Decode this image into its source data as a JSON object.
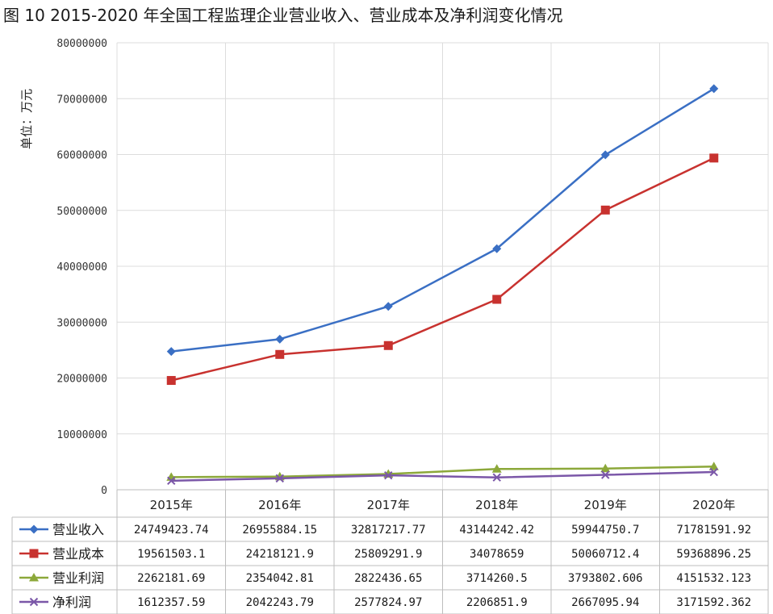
{
  "chart_data": {
    "type": "line",
    "title": "图 10   2015-2020 年全国工程监理企业营业收入、营业成本及净利润变化情况",
    "ylabel": "单位：万元",
    "xlabel": "",
    "ylim": [
      0,
      80000000
    ],
    "yticks": [
      0,
      10000000,
      20000000,
      30000000,
      40000000,
      50000000,
      60000000,
      70000000,
      80000000
    ],
    "ytick_labels": [
      "0",
      "10000000",
      "20000000",
      "30000000",
      "40000000",
      "50000000",
      "60000000",
      "70000000",
      "80000000"
    ],
    "categories": [
      "2015年",
      "2016年",
      "2017年",
      "2018年",
      "2019年",
      "2020年"
    ],
    "grid": true,
    "legend": "data-table-bottom",
    "series": [
      {
        "name": "营业收入",
        "color": "#3a6fc4",
        "marker": "diamond",
        "values": [
          24749423.74,
          26955884.15,
          32817217.77,
          43144242.42,
          59944750.7,
          71781591.92
        ],
        "labels": [
          "24749423.74",
          "26955884.15",
          "32817217.77",
          "43144242.42",
          "59944750.7",
          "71781591.92"
        ]
      },
      {
        "name": "营业成本",
        "color": "#c8322f",
        "marker": "square",
        "values": [
          19561503.1,
          24218121.9,
          25809291.9,
          34078659,
          50060712.4,
          59368896.25
        ],
        "labels": [
          "19561503.1",
          "24218121.9",
          "25809291.9",
          "34078659",
          "50060712.4",
          "59368896.25"
        ]
      },
      {
        "name": "营业利润",
        "color": "#8ca83a",
        "marker": "triangle",
        "values": [
          2262181.69,
          2354042.81,
          2822436.65,
          3714260.5,
          3793802.606,
          4151532.123
        ],
        "labels": [
          "2262181.69",
          "2354042.81",
          "2822436.65",
          "3714260.5",
          "3793802.606",
          "4151532.123"
        ]
      },
      {
        "name": "净利润",
        "color": "#7b57a8",
        "marker": "x",
        "values": [
          1612357.59,
          2042243.79,
          2577824.97,
          2206851.9,
          2667095.94,
          3171592.362
        ],
        "labels": [
          "1612357.59",
          "2042243.79",
          "2577824.97",
          "2206851.9",
          "2667095.94",
          "3171592.362"
        ]
      }
    ]
  }
}
